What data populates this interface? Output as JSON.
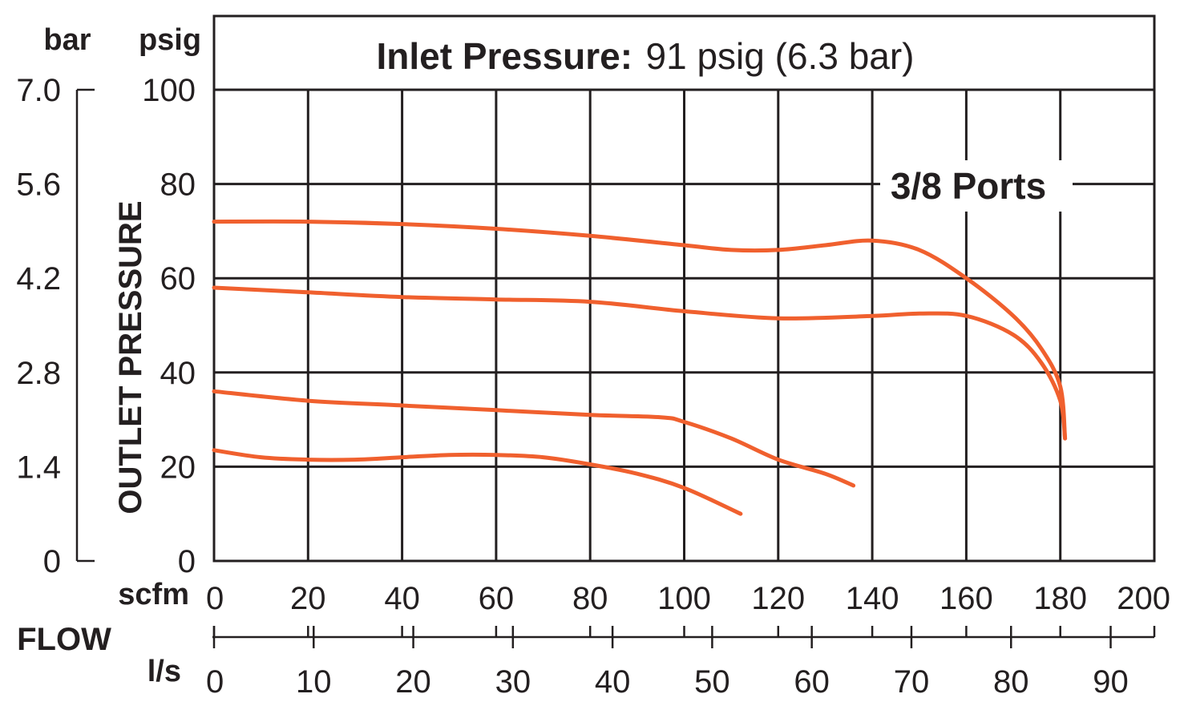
{
  "chart_data": {
    "type": "line",
    "title_bold": "Inlet Pressure:",
    "title_rest": "91 psig (6.3 bar)",
    "annotation": "3/8 Ports",
    "ylabel": "OUTLET PRESSURE",
    "xlabel": "FLOW",
    "y_unit_psig": "psig",
    "y_unit_bar": "bar",
    "x_unit_scfm": "scfm",
    "x_unit_ls": "l/s",
    "ylim": [
      0,
      100
    ],
    "xlim": [
      0,
      200
    ],
    "psig_ticks": [
      "0",
      "20",
      "40",
      "60",
      "80",
      "100"
    ],
    "bar_ticks": [
      "0",
      "1.4",
      "2.8",
      "4.2",
      "5.6",
      "7.0"
    ],
    "scfm_ticks": [
      "0",
      "20",
      "40",
      "60",
      "80",
      "100",
      "120",
      "140",
      "160",
      "180",
      "200"
    ],
    "ls_ticks": [
      "0",
      "10",
      "20",
      "30",
      "40",
      "50",
      "60",
      "70",
      "80",
      "90"
    ],
    "grid": true,
    "series": [
      {
        "x": [
          0,
          20,
          40,
          60,
          80,
          100,
          110,
          120,
          130,
          140,
          150,
          160,
          170,
          176,
          180,
          181
        ],
        "y": [
          72,
          72,
          71.5,
          70.5,
          69,
          67,
          66,
          66,
          67,
          68,
          66,
          60,
          52,
          45,
          37,
          26
        ]
      },
      {
        "x": [
          0,
          20,
          40,
          60,
          80,
          100,
          120,
          140,
          150,
          160,
          170,
          176,
          180,
          181
        ],
        "y": [
          58,
          57,
          56,
          55.5,
          55,
          53,
          51.5,
          52,
          52.5,
          52,
          48,
          42,
          34,
          26
        ]
      },
      {
        "x": [
          0,
          20,
          40,
          60,
          80,
          95,
          100,
          110,
          120,
          130,
          136
        ],
        "y": [
          36,
          34,
          33,
          32,
          31,
          30.5,
          29.5,
          26,
          21.5,
          18.5,
          16
        ]
      },
      {
        "x": [
          0,
          10,
          20,
          30,
          40,
          50,
          60,
          70,
          80,
          90,
          100,
          112
        ],
        "y": [
          23.5,
          22,
          21.5,
          21.5,
          22,
          22.5,
          22.5,
          22,
          20.5,
          18.5,
          15.5,
          10
        ]
      }
    ],
    "colors": {
      "curve": "#f0602e",
      "ink": "#231f20"
    }
  }
}
